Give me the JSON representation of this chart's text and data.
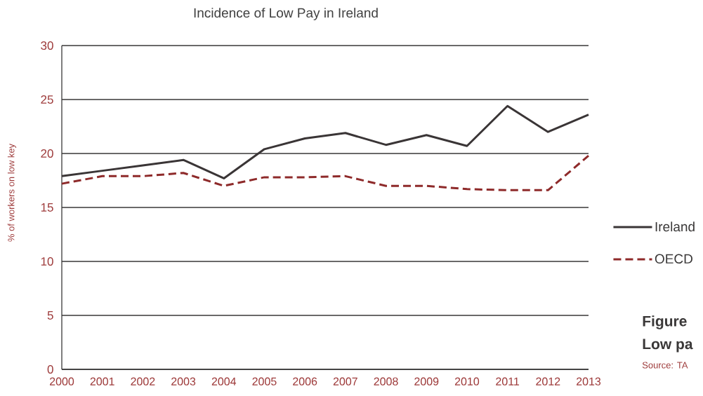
{
  "chart_data": {
    "type": "line",
    "title": "Incidence of Low Pay in Ireland",
    "ylabel": "% of workers on low key",
    "categories": [
      "2000",
      "2001",
      "2002",
      "2003",
      "2004",
      "2005",
      "2006",
      "2007",
      "2008",
      "2009",
      "2010",
      "2011",
      "2012",
      "2013"
    ],
    "series": [
      {
        "name": "Ireland",
        "color": "#3a3536",
        "line_style": "solid",
        "values": [
          17.9,
          18.4,
          18.9,
          19.4,
          17.7,
          20.4,
          21.4,
          21.9,
          20.8,
          21.7,
          20.7,
          24.4,
          22.0,
          23.6
        ]
      },
      {
        "name": "OECD",
        "color": "#8e2a2a",
        "line_style": "dashed",
        "values": [
          17.2,
          17.9,
          17.9,
          18.2,
          17.0,
          17.8,
          17.8,
          17.9,
          17.0,
          17.0,
          16.7,
          16.6,
          16.6,
          19.8
        ]
      }
    ],
    "ylim": [
      0,
      30
    ],
    "yticks": [
      0,
      5,
      10,
      15,
      20,
      25,
      30
    ],
    "grid": "y",
    "legend": "right",
    "annotations": [
      "Figure",
      "Low pa",
      "Source: TA"
    ]
  }
}
